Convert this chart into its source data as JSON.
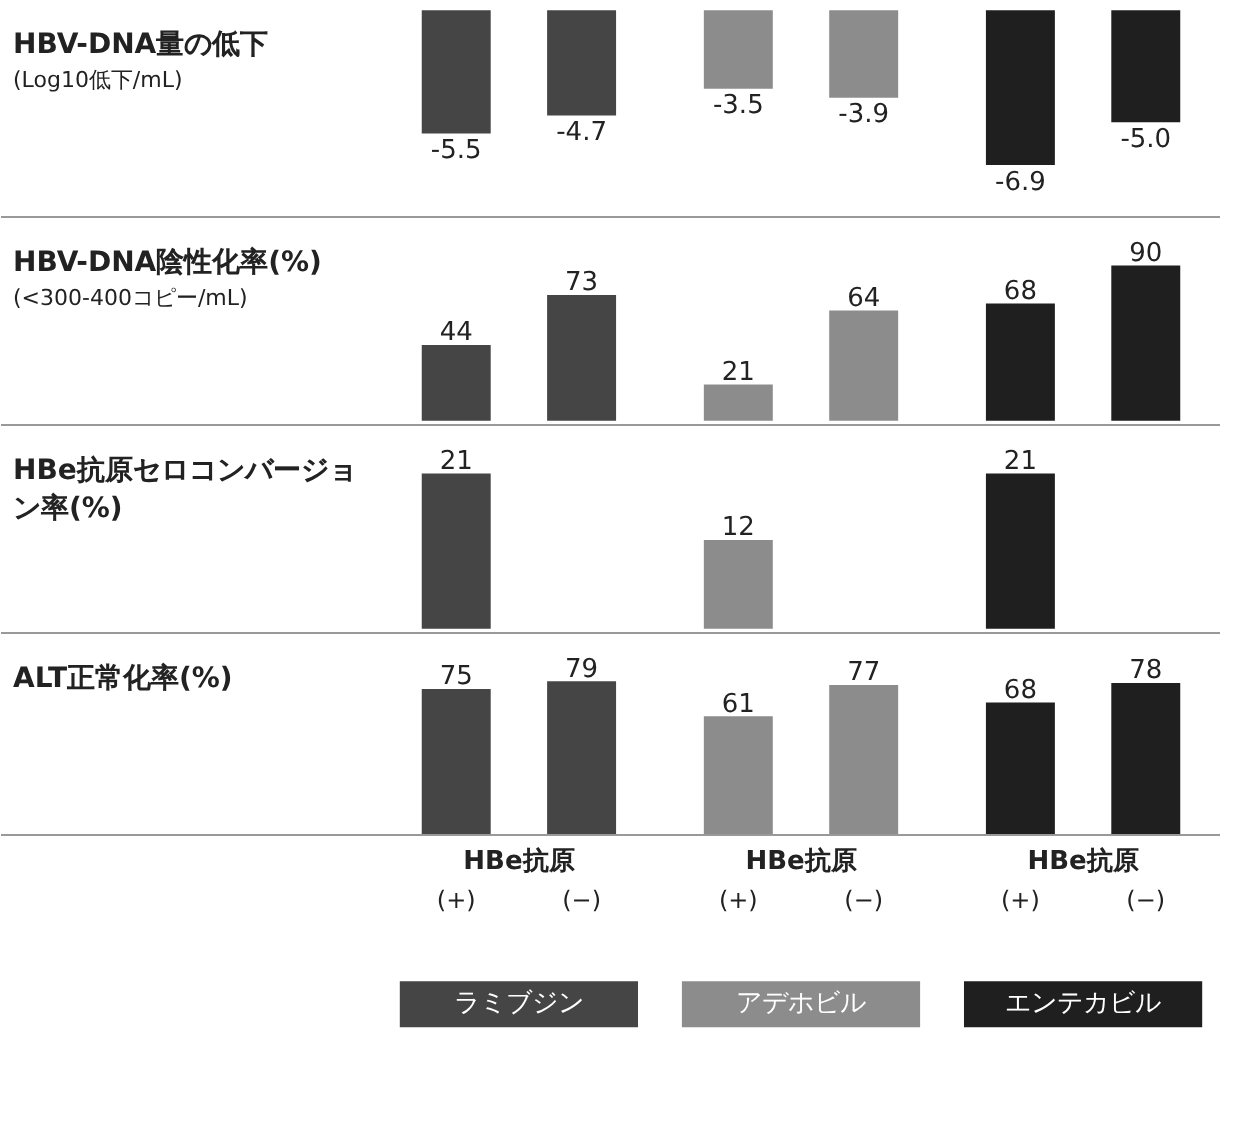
{
  "chart_data": [
    {
      "type": "bar",
      "title": "HBV-DNA量の低下",
      "annotations": [
        "(Log10低下/mL)"
      ],
      "categories": [
        null,
        null,
        null,
        null,
        null,
        null
      ],
      "values": [
        -5.5,
        -4.7,
        -3.5,
        -3.9,
        -6.9,
        -5.0
      ],
      "value_labels": [
        "-5.5",
        "-4.7",
        "-3.5",
        "-3.9",
        "-6.9",
        "-5.0"
      ],
      "colors": [
        "#454545",
        "#454545",
        "#8c8c8c",
        "#8c8c8c",
        "#1f1f1f",
        "#1f1f1f"
      ]
    },
    {
      "type": "bar",
      "title": "HBV-DNA陰性化率(%)",
      "annotations": [
        "(<300-400コピー/mL)"
      ],
      "categories": [
        null,
        null,
        null,
        null,
        null,
        null
      ],
      "data_labels": true,
      "values": [
        44,
        73,
        21,
        64,
        68,
        90
      ],
      "colors": [
        "#454545",
        "#454545",
        "#8c8c8c",
        "#8c8c8c",
        "#1f1f1f",
        "#1f1f1f"
      ]
    },
    {
      "type": "bar",
      "title": "HBe抗原セロコンバージョン率(%)",
      "categories": [
        null,
        null,
        null,
        null,
        null,
        null
      ],
      "data_labels": true,
      "values": [
        21,
        null,
        12,
        null,
        21,
        null
      ],
      "colors": [
        "#454545",
        "#454545",
        "#8c8c8c",
        "#8c8c8c",
        "#1f1f1f",
        "#1f1f1f"
      ]
    },
    {
      "type": "bar",
      "title": "ALT正常化率(%)",
      "categories": [
        "(+)",
        "(−)",
        "(+)",
        "(−)",
        "(+)",
        "(−)"
      ],
      "data_labels": true,
      "legend": "bottom",
      "annotations": [
        "HBe抗原",
        "HBe抗原",
        "HBe抗原"
      ],
      "series": [
        {
          "name": "ラミブジン",
          "color": "#454545",
          "values": [
            75,
            79,
            null,
            null,
            null,
            null
          ]
        },
        {
          "name": "アデホビル",
          "color": "#8c8c8c",
          "values": [
            null,
            null,
            61,
            77,
            null,
            null
          ]
        },
        {
          "name": "エンテカビル",
          "color": "#1f1f1f",
          "values": [
            null,
            null,
            null,
            null,
            68,
            78
          ]
        }
      ]
    }
  ]
}
